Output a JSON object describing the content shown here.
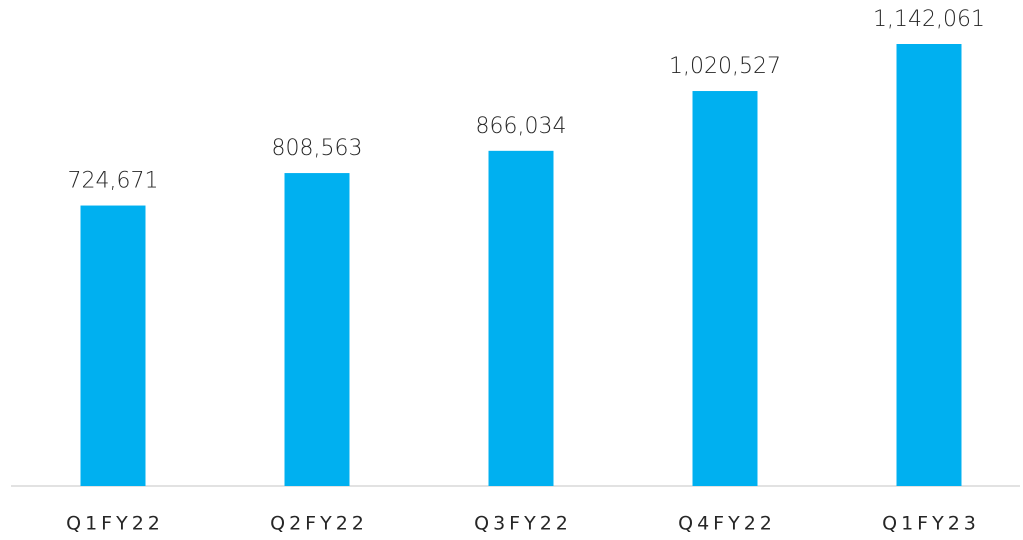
{
  "chart_data": {
    "type": "bar",
    "categories": [
      "Q1FY22",
      "Q2FY22",
      "Q3FY22",
      "Q4FY22",
      "Q1FY23"
    ],
    "values": [
      724671,
      808563,
      866034,
      1020527,
      1142061
    ],
    "value_labels": [
      "724,671",
      "808,563",
      "866,034",
      "1,020,527",
      "1,142,061"
    ],
    "color": "#00b0f0",
    "ylim": [
      0,
      1255750
    ]
  }
}
